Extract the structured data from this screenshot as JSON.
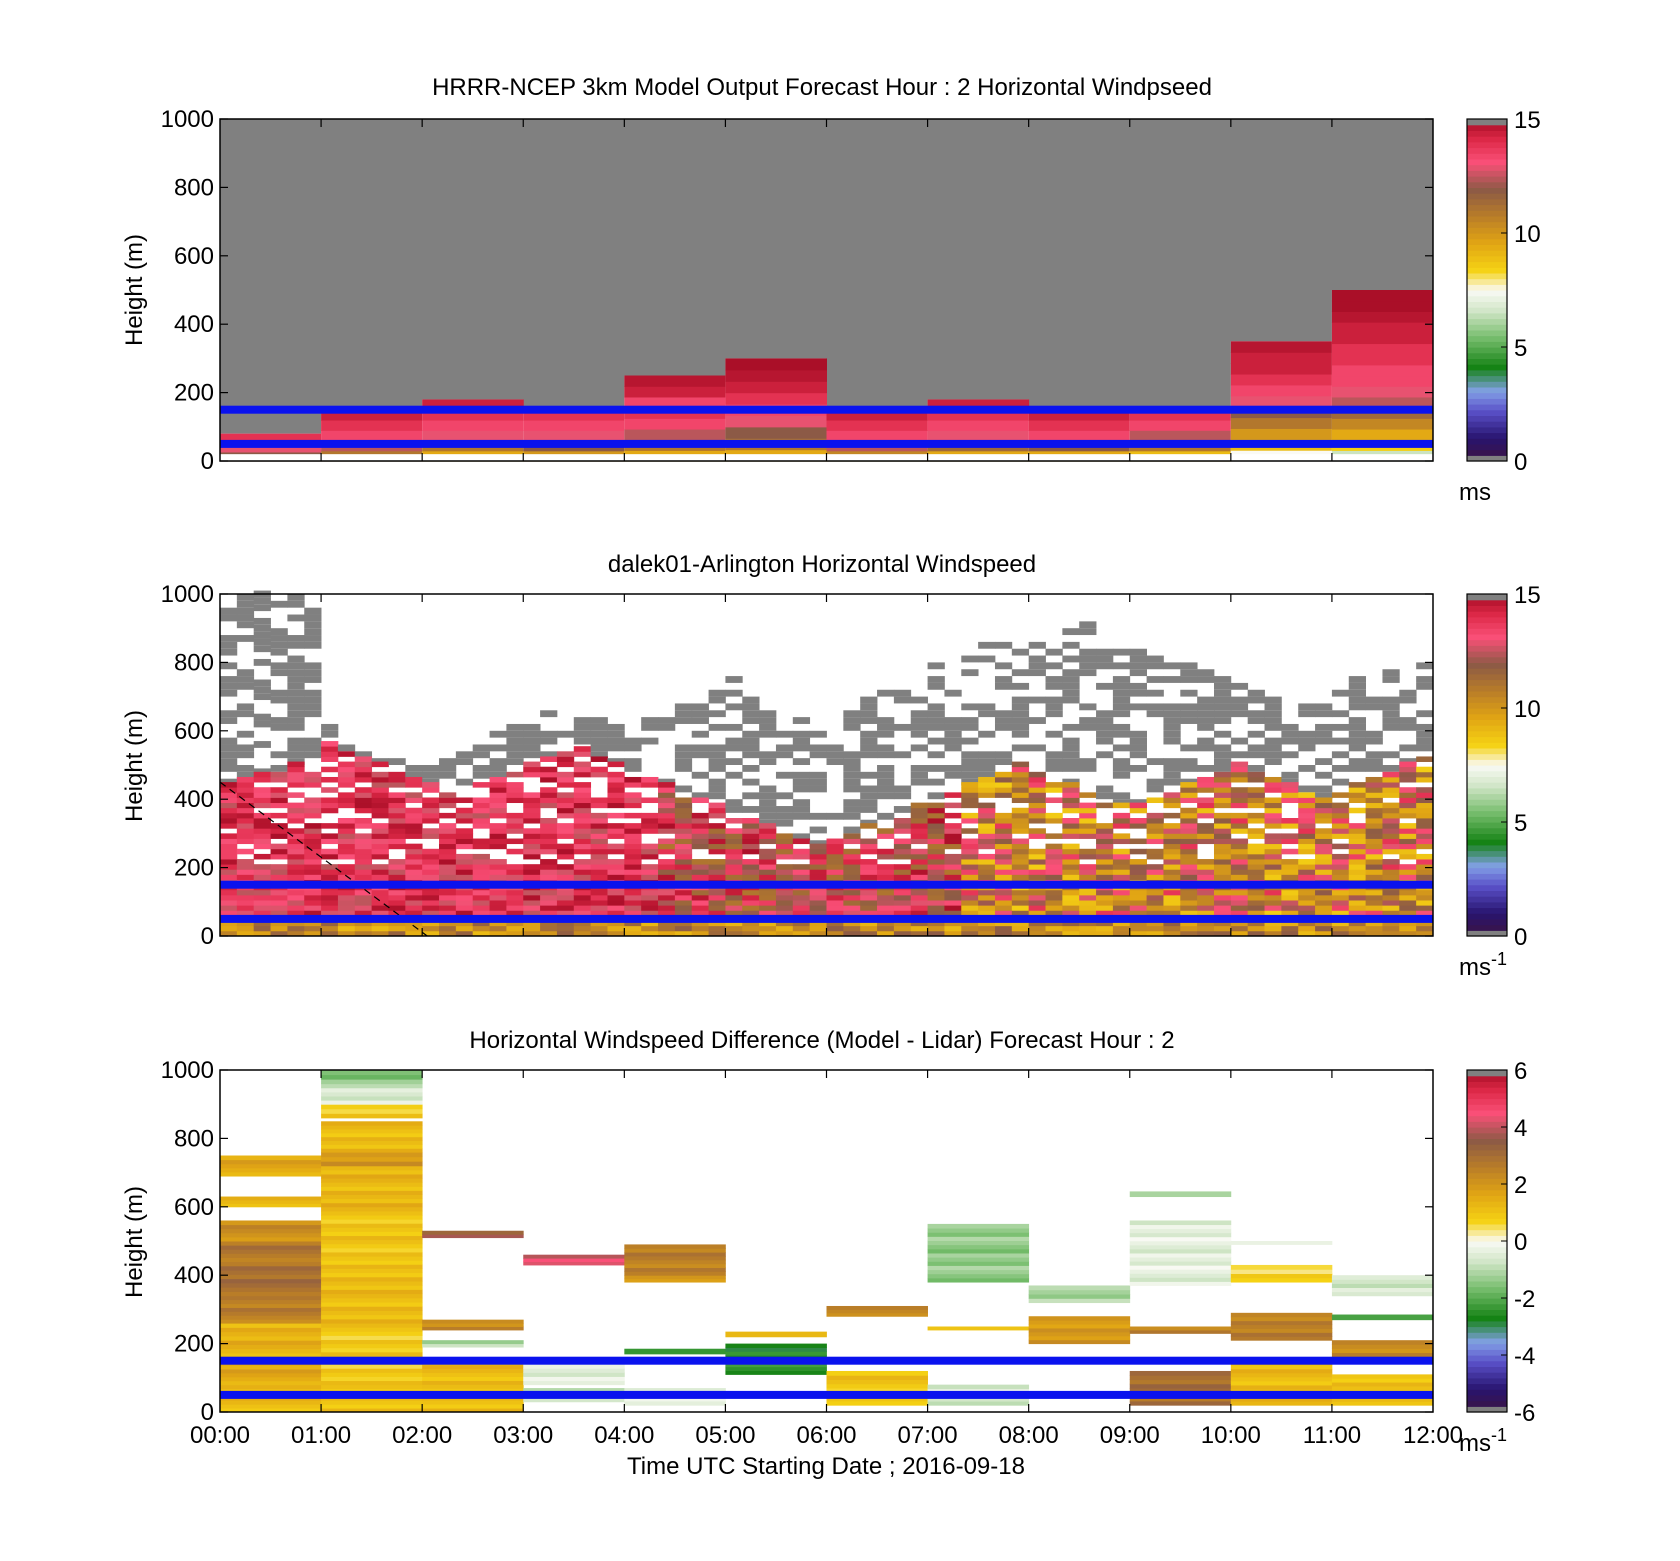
{
  "chart_data": [
    {
      "type": "heatmap",
      "title": "HRRR-NCEP 3km Model Output   Forecast Hour : 2 Horizontal Windpseed",
      "xlabel": "",
      "ylabel": "Height (m)",
      "xlim": [
        0,
        12
      ],
      "ylim": [
        0,
        1000
      ],
      "x_ticks": [],
      "y_ticks": [
        0,
        200,
        400,
        600,
        800,
        1000
      ],
      "colorbar": {
        "min": 0,
        "max": 15,
        "ticks": [
          0,
          5,
          10,
          15
        ],
        "unit": "ms",
        "unit_sup": ""
      },
      "reference_lines": [
        50,
        150
      ],
      "model_columns": [
        {
          "hour": 0,
          "top": 80,
          "speeds": [
            12.0,
            13.0,
            14.0
          ]
        },
        {
          "hour": 1,
          "top": 150,
          "speeds": [
            11.0,
            12.5,
            13.5,
            14.0,
            14.5
          ]
        },
        {
          "hour": 2,
          "top": 180,
          "speeds": [
            9.5,
            11.0,
            13.0,
            13.5,
            14.0,
            14.5
          ]
        },
        {
          "hour": 3,
          "top": 150,
          "speeds": [
            10.0,
            12.0,
            13.0,
            13.5,
            14.0
          ]
        },
        {
          "hour": 4,
          "top": 250,
          "speeds": [
            9.5,
            11.0,
            12.5,
            13.5,
            14.0,
            13.5,
            14.5,
            14.8
          ]
        },
        {
          "hour": 5,
          "top": 300,
          "speeds": [
            9.5,
            11.0,
            12.0,
            13.0,
            13.5,
            14.0,
            14.5,
            14.8,
            15.0
          ]
        },
        {
          "hour": 6,
          "top": 150,
          "speeds": [
            10.5,
            12.5,
            13.5,
            14.0,
            14.5
          ]
        },
        {
          "hour": 7,
          "top": 180,
          "speeds": [
            9.5,
            11.5,
            13.0,
            13.5,
            14.0,
            14.5
          ]
        },
        {
          "hour": 8,
          "top": 150,
          "speeds": [
            9.5,
            12.0,
            13.5,
            14.0,
            14.5
          ]
        },
        {
          "hour": 9,
          "top": 150,
          "speeds": [
            9.0,
            11.0,
            12.5,
            13.5,
            14.0
          ]
        },
        {
          "hour": 10,
          "top": 350,
          "speeds": [
            7.5,
            9.0,
            10.0,
            11.0,
            12.0,
            13.0,
            13.5,
            14.0,
            14.5,
            14.5,
            14.8
          ]
        },
        {
          "hour": 11,
          "top": 500,
          "speeds": [
            6.5,
            8.5,
            9.5,
            10.5,
            11.5,
            12.5,
            13.0,
            13.5,
            13.5,
            14.0,
            14.0,
            14.5,
            14.5,
            14.8,
            15.0,
            15.0
          ]
        }
      ]
    },
    {
      "type": "heatmap",
      "title": "dalek01-Arlington  Horizontal Windspeed",
      "xlabel": "",
      "ylabel": "Height (m)",
      "xlim": [
        0,
        12
      ],
      "ylim": [
        0,
        1000
      ],
      "x_ticks": [],
      "y_ticks": [
        0,
        200,
        400,
        600,
        800,
        1000
      ],
      "colorbar": {
        "min": 0,
        "max": 15,
        "ticks": [
          0,
          5,
          10,
          15
        ],
        "unit": "ms",
        "unit_sup": "-1"
      },
      "reference_lines": [
        50,
        150
      ],
      "dashed_line": {
        "x": [
          0,
          2.05
        ],
        "y": [
          450,
          0
        ]
      },
      "lidar_gates_per_hour": 6,
      "lidar_top_of_gray": [
        980,
        1000,
        1000,
        1000,
        1000,
        1000,
        620,
        560,
        530,
        520,
        510,
        500,
        500,
        520,
        540,
        560,
        600,
        620,
        640,
        660,
        680,
        700,
        640,
        620,
        620,
        640,
        660,
        680,
        700,
        740,
        760,
        720,
        700,
        660,
        640,
        620,
        640,
        660,
        700,
        720,
        740,
        760,
        800,
        820,
        840,
        860,
        880,
        900,
        860,
        880,
        900,
        920,
        900,
        880,
        860,
        840,
        820,
        800,
        780,
        760,
        740,
        720,
        700,
        680,
        700,
        720,
        740,
        760,
        780,
        800,
        820,
        840
      ],
      "lidar_top_of_data": [
        440,
        460,
        470,
        480,
        500,
        520,
        560,
        540,
        520,
        500,
        480,
        460,
        440,
        420,
        420,
        440,
        460,
        480,
        500,
        520,
        540,
        560,
        520,
        500,
        480,
        460,
        440,
        420,
        400,
        380,
        360,
        340,
        320,
        300,
        280,
        260,
        280,
        300,
        320,
        340,
        360,
        380,
        400,
        420,
        440,
        460,
        480,
        500,
        480,
        460,
        440,
        420,
        400,
        380,
        380,
        400,
        420,
        440,
        460,
        480,
        500,
        480,
        460,
        440,
        420,
        400,
        420,
        440,
        460,
        480,
        500,
        520
      ]
    },
    {
      "type": "heatmap",
      "title": "Horizontal Windspeed Difference (Model - Lidar) Forecast Hour : 2",
      "xlabel": "Time UTC  Starting Date ; 2016-09-18",
      "ylabel": "Height (m)",
      "xlim": [
        0,
        12
      ],
      "ylim": [
        0,
        1000
      ],
      "x_ticks": [
        "00:00",
        "01:00",
        "02:00",
        "03:00",
        "04:00",
        "05:00",
        "06:00",
        "07:00",
        "08:00",
        "09:00",
        "10:00",
        "11:00",
        "12:00"
      ],
      "y_ticks": [
        0,
        200,
        400,
        600,
        800,
        1000
      ],
      "colorbar": {
        "min": -6,
        "max": 6,
        "ticks": [
          -6,
          -4,
          -2,
          0,
          2,
          4,
          6
        ],
        "unit": "ms",
        "unit_sup": "-1"
      },
      "reference_lines": [
        50,
        150
      ],
      "diff_bands": [
        {
          "hour": 0,
          "y0": 0,
          "y1": 80,
          "v": 1.2
        },
        {
          "hour": 0,
          "y0": 80,
          "y1": 160,
          "v": 1.6
        },
        {
          "hour": 0,
          "y0": 160,
          "y1": 260,
          "v": 1.4
        },
        {
          "hour": 0,
          "y0": 260,
          "y1": 340,
          "v": 2.6
        },
        {
          "hour": 0,
          "y0": 340,
          "y1": 440,
          "v": 3.0
        },
        {
          "hour": 0,
          "y0": 440,
          "y1": 500,
          "v": 2.8
        },
        {
          "hour": 0,
          "y0": 500,
          "y1": 560,
          "v": 2.2
        },
        {
          "hour": 0,
          "y0": 600,
          "y1": 630,
          "v": 1.4
        },
        {
          "hour": 0,
          "y0": 690,
          "y1": 750,
          "v": 1.6
        },
        {
          "hour": 1,
          "y0": 0,
          "y1": 80,
          "v": 1.0
        },
        {
          "hour": 1,
          "y0": 80,
          "y1": 260,
          "v": 0.9
        },
        {
          "hour": 1,
          "y0": 260,
          "y1": 420,
          "v": 1.2
        },
        {
          "hour": 1,
          "y0": 420,
          "y1": 600,
          "v": 1.0
        },
        {
          "hour": 1,
          "y0": 600,
          "y1": 720,
          "v": 1.3
        },
        {
          "hour": 1,
          "y0": 720,
          "y1": 760,
          "v": 2.0
        },
        {
          "hour": 1,
          "y0": 760,
          "y1": 850,
          "v": 1.2
        },
        {
          "hour": 1,
          "y0": 860,
          "y1": 900,
          "v": 0.8
        },
        {
          "hour": 1,
          "y0": 900,
          "y1": 960,
          "v": -0.6
        },
        {
          "hour": 1,
          "y0": 960,
          "y1": 1000,
          "v": -1.6
        },
        {
          "hour": 2,
          "y0": 0,
          "y1": 150,
          "v": 1.2
        },
        {
          "hour": 2,
          "y0": 190,
          "y1": 210,
          "v": -1.0
        },
        {
          "hour": 2,
          "y0": 240,
          "y1": 270,
          "v": 2.4
        },
        {
          "hour": 2,
          "y0": 510,
          "y1": 530,
          "v": 3.6
        },
        {
          "hour": 3,
          "y0": 30,
          "y1": 70,
          "v": -0.8
        },
        {
          "hour": 3,
          "y0": 80,
          "y1": 140,
          "v": -0.5
        },
        {
          "hour": 3,
          "y0": 430,
          "y1": 460,
          "v": 4.2
        },
        {
          "hour": 4,
          "y0": 20,
          "y1": 70,
          "v": -0.4
        },
        {
          "hour": 4,
          "y0": 170,
          "y1": 185,
          "v": -2.4
        },
        {
          "hour": 4,
          "y0": 380,
          "y1": 400,
          "v": 1.8
        },
        {
          "hour": 4,
          "y0": 400,
          "y1": 490,
          "v": 2.6
        },
        {
          "hour": 5,
          "y0": 110,
          "y1": 200,
          "v": -2.6
        },
        {
          "hour": 5,
          "y0": 220,
          "y1": 235,
          "v": 1.4
        },
        {
          "hour": 6,
          "y0": 20,
          "y1": 120,
          "v": 1.0
        },
        {
          "hour": 6,
          "y0": 280,
          "y1": 310,
          "v": 2.4
        },
        {
          "hour": 7,
          "y0": 20,
          "y1": 80,
          "v": -0.6
        },
        {
          "hour": 7,
          "y0": 240,
          "y1": 250,
          "v": 1.4
        },
        {
          "hour": 7,
          "y0": 380,
          "y1": 550,
          "v": -1.4
        },
        {
          "hour": 8,
          "y0": 200,
          "y1": 280,
          "v": 2.0
        },
        {
          "hour": 8,
          "y0": 320,
          "y1": 370,
          "v": -1.2
        },
        {
          "hour": 9,
          "y0": 20,
          "y1": 120,
          "v": 3.0
        },
        {
          "hour": 9,
          "y0": 230,
          "y1": 250,
          "v": 2.6
        },
        {
          "hour": 9,
          "y0": 370,
          "y1": 560,
          "v": -0.4
        },
        {
          "hour": 9,
          "y0": 630,
          "y1": 645,
          "v": -1.4
        },
        {
          "hour": 10,
          "y0": 20,
          "y1": 150,
          "v": 1.2
        },
        {
          "hour": 10,
          "y0": 210,
          "y1": 290,
          "v": 2.6
        },
        {
          "hour": 10,
          "y0": 380,
          "y1": 430,
          "v": 0.6
        },
        {
          "hour": 10,
          "y0": 490,
          "y1": 500,
          "v": -0.4
        },
        {
          "hour": 11,
          "y0": 20,
          "y1": 110,
          "v": 1.0
        },
        {
          "hour": 11,
          "y0": 150,
          "y1": 210,
          "v": 2.4
        },
        {
          "hour": 11,
          "y0": 270,
          "y1": 285,
          "v": -2.2
        },
        {
          "hour": 11,
          "y0": 340,
          "y1": 400,
          "v": -0.6
        }
      ]
    }
  ]
}
